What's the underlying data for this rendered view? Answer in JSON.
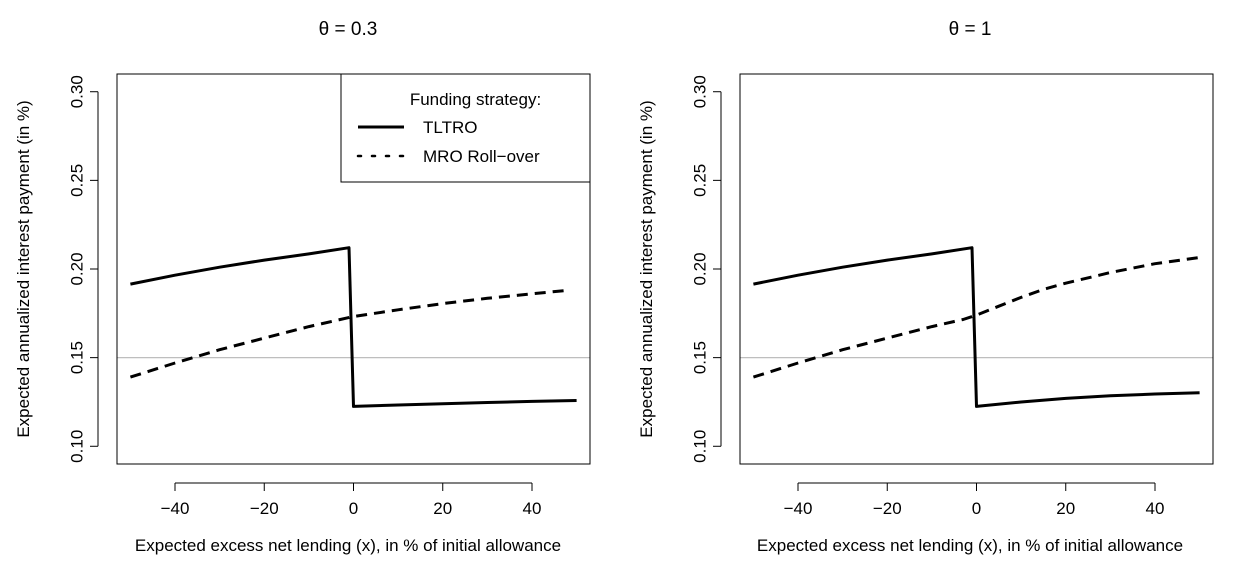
{
  "chart_data": [
    {
      "type": "line",
      "title": "θ = 0.3",
      "xlabel": "Expected excess net lending (x), in % of initial allowance",
      "ylabel": "Expected annualized interest payment (in %)",
      "xlim": [
        -53,
        53
      ],
      "ylim": [
        0.09,
        0.31
      ],
      "xticks": [
        -40,
        -20,
        0,
        20,
        40
      ],
      "xtick_labels": [
        "−40",
        "−20",
        "0",
        "20",
        "40"
      ],
      "yticks": [
        0.1,
        0.15,
        0.2,
        0.25,
        0.3
      ],
      "ytick_labels": [
        "0.10",
        "0.15",
        "0.20",
        "0.25",
        "0.30"
      ],
      "reference_line": {
        "y": 0.15,
        "color": "#bebebe"
      },
      "grid": false,
      "legend": {
        "placement": "top-right",
        "title": "Funding strategy:",
        "entries": [
          "TLTRO",
          "MRO Roll−over"
        ]
      },
      "series": [
        {
          "name": "TLTRO",
          "style": "solid",
          "color": "#000000",
          "x": [
            -50,
            -40,
            -30,
            -20,
            -10,
            -1,
            0,
            10,
            20,
            30,
            40,
            50
          ],
          "y": [
            0.1915,
            0.1965,
            0.201,
            0.205,
            0.2085,
            0.212,
            0.1225,
            0.1233,
            0.124,
            0.1247,
            0.1253,
            0.1258
          ]
        },
        {
          "name": "MRO Roll−over",
          "style": "dashed",
          "color": "#000000",
          "x": [
            -50,
            -40,
            -30,
            -20,
            -10,
            0,
            10,
            20,
            30,
            40,
            48
          ],
          "y": [
            0.139,
            0.147,
            0.1545,
            0.161,
            0.1675,
            0.1732,
            0.177,
            0.1805,
            0.1835,
            0.186,
            0.188
          ]
        }
      ]
    },
    {
      "type": "line",
      "title": "θ = 1",
      "xlabel": "Expected excess net lending (x), in % of initial allowance",
      "ylabel": "Expected annualized interest payment (in %)",
      "xlim": [
        -53,
        53
      ],
      "ylim": [
        0.09,
        0.31
      ],
      "xticks": [
        -40,
        -20,
        0,
        20,
        40
      ],
      "xtick_labels": [
        "−40",
        "−20",
        "0",
        "20",
        "40"
      ],
      "yticks": [
        0.1,
        0.15,
        0.2,
        0.25,
        0.3
      ],
      "ytick_labels": [
        "0.10",
        "0.15",
        "0.20",
        "0.25",
        "0.30"
      ],
      "reference_line": {
        "y": 0.15,
        "color": "#bebebe"
      },
      "grid": false,
      "series": [
        {
          "name": "TLTRO",
          "style": "solid",
          "color": "#000000",
          "x": [
            -50,
            -40,
            -30,
            -20,
            -10,
            -1,
            0,
            10,
            20,
            30,
            40,
            50
          ],
          "y": [
            0.1915,
            0.1965,
            0.201,
            0.205,
            0.2085,
            0.212,
            0.1225,
            0.125,
            0.127,
            0.1285,
            0.1295,
            0.1302
          ]
        },
        {
          "name": "MRO Roll−over",
          "style": "dashed",
          "color": "#000000",
          "x": [
            -50,
            -40,
            -30,
            -20,
            -10,
            -3,
            0,
            5,
            10,
            15,
            20,
            30,
            40,
            50
          ],
          "y": [
            0.139,
            0.147,
            0.1545,
            0.161,
            0.1675,
            0.1715,
            0.174,
            0.179,
            0.184,
            0.1885,
            0.192,
            0.198,
            0.203,
            0.2065
          ]
        }
      ]
    }
  ]
}
